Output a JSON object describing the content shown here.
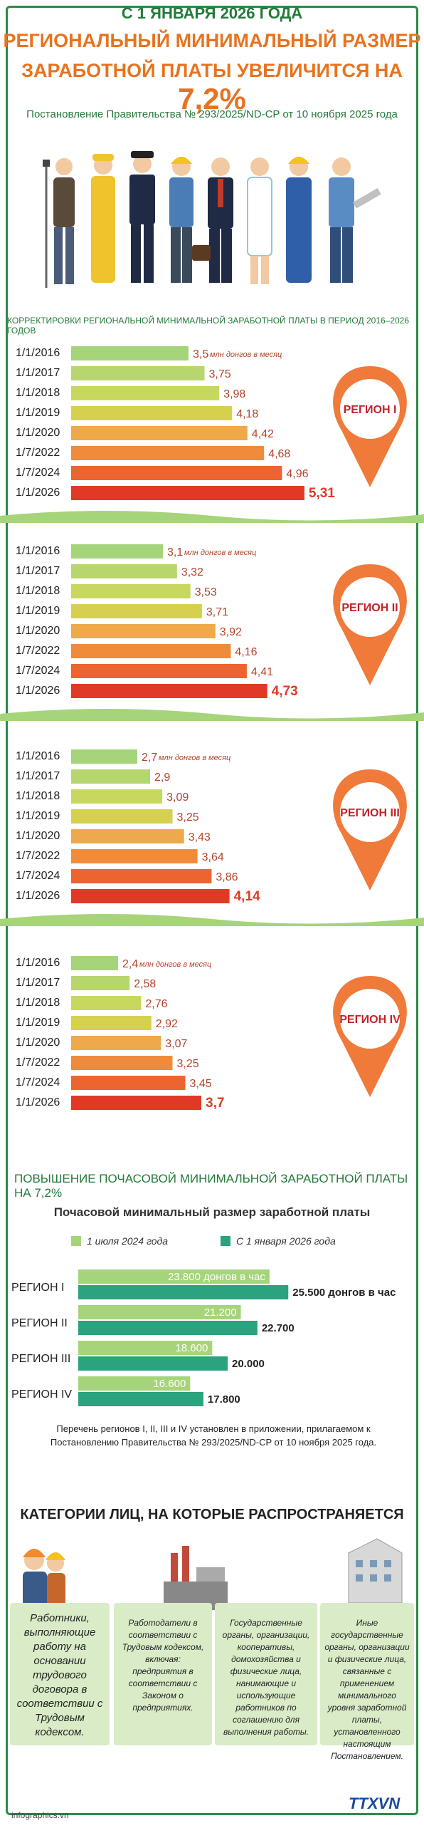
{
  "header": {
    "date_line": "С 1 ЯНВАРЯ 2026 ГОДА",
    "title_line1": "РЕГИОНАЛЬНЫЙ МИНИМАЛЬНЫЙ РАЗМЕР",
    "title_line2": "ЗАРАБОТНОЙ ПЛАТЫ УВЕЛИЧИТСЯ НА",
    "title_pct": "7,2%",
    "resolution": "Постановление Правительства № 293/2025/ND-CP от 10 ноября 2025 года"
  },
  "period_title": "КОРРЕКТИРОВКИ РЕГИОНАЛЬНОЙ МИНИМАЛЬНОЙ ЗАРАБОТНОЙ ПЛАТЫ В ПЕРИОД 2016–2026 ГОДОВ",
  "colors": {
    "green_dark": "#237a3a",
    "orange": "#e8731f",
    "red": "#e03a26",
    "bar_scale": [
      "#a6d47a",
      "#b7d66d",
      "#c8d85f",
      "#d6d04f",
      "#eea94a",
      "#f08b3c",
      "#ec6530",
      "#e03a26"
    ],
    "hourly_2024": "#a6d47a",
    "hourly_2026": "#2aa37e"
  },
  "chart_data": [
    {
      "type": "bar",
      "orientation": "horizontal",
      "region_label": "РЕГИОН I",
      "unit_note": "млн донгов в месяц",
      "categories": [
        "1/1/2016",
        "1/1/2017",
        "1/1/2018",
        "1/1/2019",
        "1/1/2020",
        "1/7/2022",
        "1/7/2024",
        "1/1/2026"
      ],
      "values": [
        3.5,
        3.75,
        3.98,
        4.18,
        4.42,
        4.68,
        4.96,
        5.31
      ],
      "value_labels": [
        "3,5",
        "3,75",
        "3,98",
        "4,18",
        "4,42",
        "4,68",
        "4,96",
        "5,31"
      ]
    },
    {
      "type": "bar",
      "orientation": "horizontal",
      "region_label": "РЕГИОН II",
      "unit_note": "млн донгов в месяц",
      "categories": [
        "1/1/2016",
        "1/1/2017",
        "1/1/2018",
        "1/1/2019",
        "1/1/2020",
        "1/7/2022",
        "1/7/2024",
        "1/1/2026"
      ],
      "values": [
        3.1,
        3.32,
        3.53,
        3.71,
        3.92,
        4.16,
        4.41,
        4.73
      ],
      "value_labels": [
        "3,1",
        "3,32",
        "3,53",
        "3,71",
        "3,92",
        "4,16",
        "4,41",
        "4,73"
      ]
    },
    {
      "type": "bar",
      "orientation": "horizontal",
      "region_label": "РЕГИОН III",
      "unit_note": "млн донгов в месяц",
      "categories": [
        "1/1/2016",
        "1/1/2017",
        "1/1/2018",
        "1/1/2019",
        "1/1/2020",
        "1/7/2022",
        "1/7/2024",
        "1/1/2026"
      ],
      "values": [
        2.7,
        2.9,
        3.09,
        3.25,
        3.43,
        3.64,
        3.86,
        4.14
      ],
      "value_labels": [
        "2,7",
        "2,9",
        "3,09",
        "3,25",
        "3,43",
        "3,64",
        "3,86",
        "4,14"
      ]
    },
    {
      "type": "bar",
      "orientation": "horizontal",
      "region_label": "РЕГИОН IV",
      "unit_note": "млн донгов в месяц",
      "categories": [
        "1/1/2016",
        "1/1/2017",
        "1/1/2018",
        "1/1/2019",
        "1/1/2020",
        "1/7/2022",
        "1/7/2024",
        "1/1/2026"
      ],
      "values": [
        2.4,
        2.58,
        2.76,
        2.92,
        3.07,
        3.25,
        3.45,
        3.7
      ],
      "value_labels": [
        "2,4",
        "2,58",
        "2,76",
        "2,92",
        "3,07",
        "3,25",
        "3,45",
        "3,7"
      ]
    },
    {
      "type": "bar",
      "orientation": "horizontal",
      "title": "Почасовой минимальный размер заработной платы",
      "categories": [
        "РЕГИОН I",
        "РЕГИОН II",
        "РЕГИОН III",
        "РЕГИОН IV"
      ],
      "series": [
        {
          "name": "1 июля 2024 года",
          "values": [
            23800,
            21200,
            18600,
            16600
          ],
          "value_labels": [
            "23.800 донгов в час",
            "21.200",
            "18.600",
            "16.600"
          ]
        },
        {
          "name": "С 1 января 2026 года",
          "values": [
            25500,
            22700,
            20000,
            17800
          ],
          "value_labels": [
            "25.500 донгов в час",
            "22.700",
            "20.000",
            "17.800"
          ]
        }
      ]
    }
  ],
  "hourly": {
    "heading": "ПОВЫШЕНИЕ ПОЧАСОВОЙ МИНИМАЛЬНОЙ ЗАРАБОТНОЙ ПЛАТЫ НА 7,2%",
    "subtitle": "Почасовой минимальный размер заработной платы",
    "legend_2024": "1 июля 2024 года",
    "legend_2026": "С 1 января 2026 года",
    "note": "Перечень регионов I, II, III и IV установлен в приложении, прилагаемом к Постановлению Правительства № 293/2025/ND-CP от 10 ноября 2025 года."
  },
  "categories_section": {
    "title": "КАТЕГОРИИ ЛИЦ, НА КОТОРЫЕ РАСПРОСТРАНЯЕТСЯ",
    "items": [
      "Работники, выполняющие работу на основании трудового договора в соответствии с Трудовым кодексом.",
      "Работодатели в соответствии с Трудовым кодексом, включая: предприятия в соответствии с Законом о предприятиях.",
      "Государственные органы, организации, кооперативы, домохозяйства и физические лица, нанимающие и использующие работников по соглашению для выполнения работы.",
      "Иные государственные органы, организации и физические лица, связанные с применением минимального уровня заработной платы, установленного настоящим Постановлением."
    ]
  },
  "footer": {
    "url": "infographics.vn",
    "logo": "TTXVN"
  }
}
